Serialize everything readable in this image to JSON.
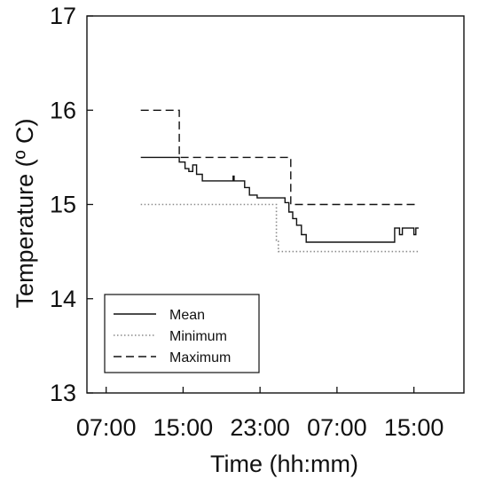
{
  "chart_data": {
    "type": "line",
    "xlabel": "Time (hh:mm)",
    "ylabel": "Temperature (º C)",
    "x_unit": "hours",
    "xlim": [
      5.0,
      44.2
    ],
    "ylim": [
      13,
      17
    ],
    "x_ticks": [
      {
        "x": 7,
        "label": "07:00"
      },
      {
        "x": 15,
        "label": "15:00"
      },
      {
        "x": 23,
        "label": "23:00"
      },
      {
        "x": 31,
        "label": "07:00"
      },
      {
        "x": 39,
        "label": "15:00"
      }
    ],
    "y_ticks": [
      {
        "y": 13,
        "label": "13"
      },
      {
        "y": 14,
        "label": "14"
      },
      {
        "y": 15,
        "label": "15"
      },
      {
        "y": 16,
        "label": "16"
      },
      {
        "y": 17,
        "label": "17"
      }
    ],
    "grid": false,
    "legend_position": "bottom-left",
    "series": [
      {
        "name": "Mean",
        "style": "solid",
        "points": [
          [
            10.6,
            15.5
          ],
          [
            14.6,
            15.5
          ],
          [
            14.6,
            15.45
          ],
          [
            15.2,
            15.45
          ],
          [
            15.2,
            15.38
          ],
          [
            15.6,
            15.38
          ],
          [
            15.6,
            15.35
          ],
          [
            16.0,
            15.35
          ],
          [
            16.0,
            15.42
          ],
          [
            16.4,
            15.42
          ],
          [
            16.4,
            15.32
          ],
          [
            17.0,
            15.32
          ],
          [
            17.0,
            15.25
          ],
          [
            20.2,
            15.25
          ],
          [
            20.2,
            15.3
          ],
          [
            20.3,
            15.3
          ],
          [
            20.3,
            15.25
          ],
          [
            21.4,
            15.25
          ],
          [
            21.4,
            15.18
          ],
          [
            21.9,
            15.18
          ],
          [
            21.9,
            15.1
          ],
          [
            22.7,
            15.1
          ],
          [
            22.7,
            15.07
          ],
          [
            25.6,
            15.07
          ],
          [
            25.6,
            15.02
          ],
          [
            26.0,
            15.02
          ],
          [
            26.0,
            14.92
          ],
          [
            26.4,
            14.92
          ],
          [
            26.4,
            14.85
          ],
          [
            26.8,
            14.85
          ],
          [
            26.8,
            14.78
          ],
          [
            27.3,
            14.78
          ],
          [
            27.3,
            14.68
          ],
          [
            27.8,
            14.68
          ],
          [
            27.8,
            14.6
          ],
          [
            37.0,
            14.6
          ],
          [
            37.0,
            14.75
          ],
          [
            37.5,
            14.75
          ],
          [
            37.5,
            14.68
          ],
          [
            37.8,
            14.68
          ],
          [
            37.8,
            14.75
          ],
          [
            39.0,
            14.75
          ],
          [
            39.0,
            14.68
          ],
          [
            39.2,
            14.68
          ],
          [
            39.2,
            14.75
          ],
          [
            39.5,
            14.75
          ]
        ]
      },
      {
        "name": "Minimum",
        "style": "dotted",
        "points": [
          [
            10.6,
            15.0
          ],
          [
            24.7,
            15.0
          ],
          [
            24.7,
            14.62
          ],
          [
            24.9,
            14.62
          ],
          [
            24.9,
            14.5
          ],
          [
            39.5,
            14.5
          ]
        ]
      },
      {
        "name": "Maximum",
        "style": "dashed",
        "points": [
          [
            10.6,
            16.0
          ],
          [
            14.6,
            16.0
          ],
          [
            14.6,
            15.5
          ],
          [
            26.2,
            15.5
          ],
          [
            26.2,
            15.0
          ],
          [
            39.5,
            15.0
          ]
        ]
      }
    ]
  }
}
